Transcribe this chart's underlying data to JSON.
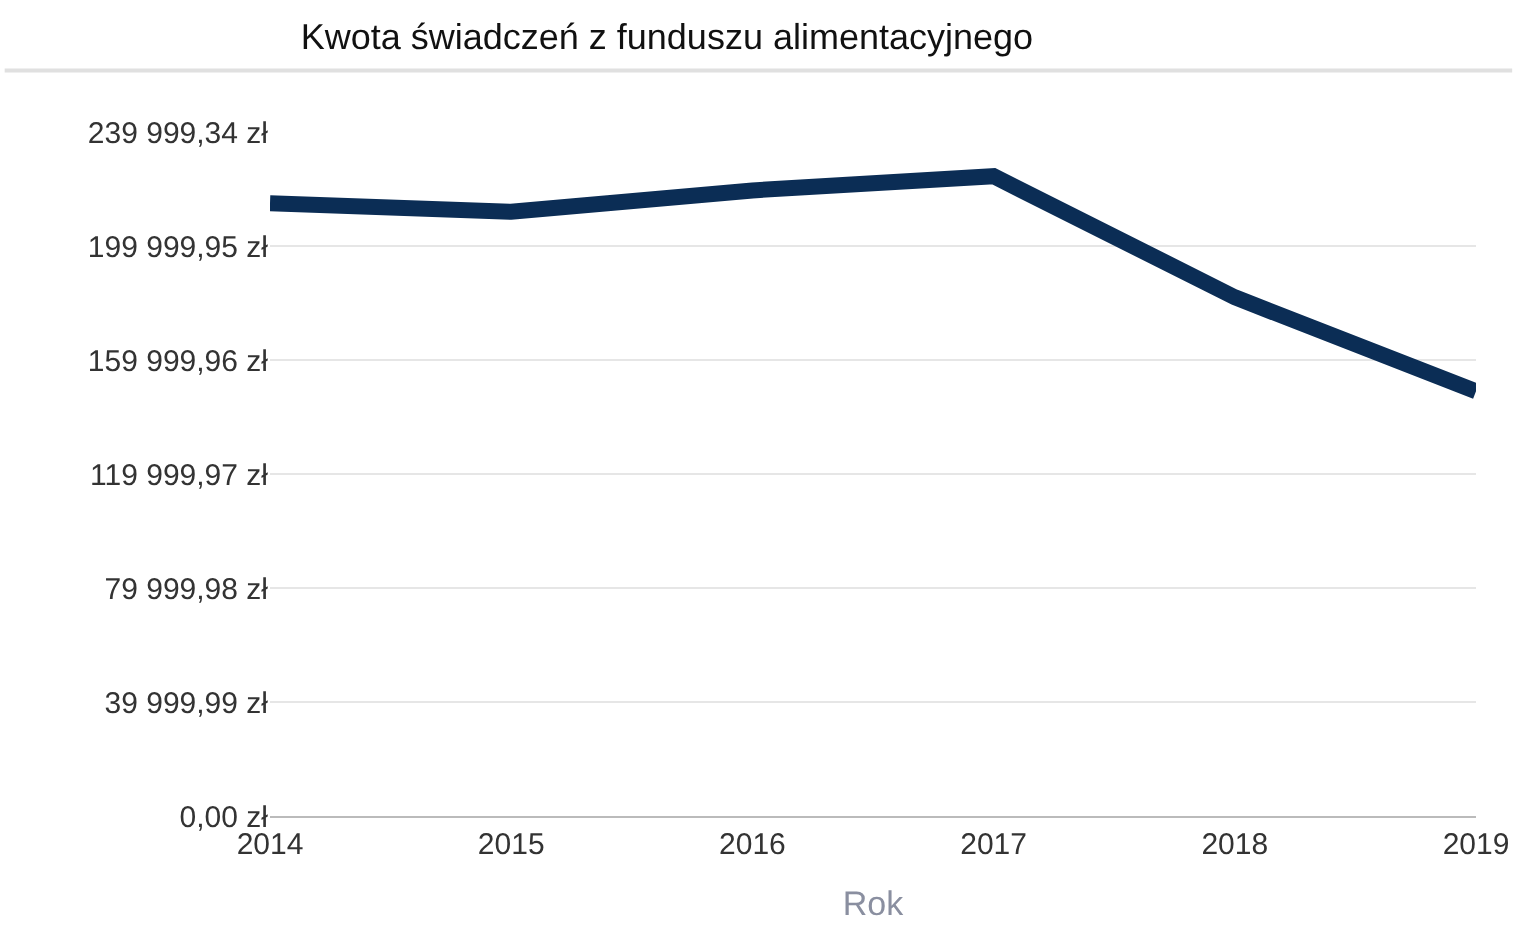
{
  "chart_data": {
    "type": "line",
    "title": "Kwota świadczeń z funduszu alimentacyjnego",
    "xlabel": "Rok",
    "x": [
      2014,
      2015,
      2016,
      2017,
      2018,
      2019
    ],
    "series": [
      {
        "color": "#0b2d55",
        "values": [
          215000,
          212000,
          219500,
          224500,
          182000,
          149000
        ]
      }
    ],
    "xlim": [
      2014,
      2019
    ],
    "xticks": [
      2014,
      2015,
      2016,
      2017,
      2018,
      2019
    ],
    "ylim": [
      0,
      239999.34
    ],
    "yticks": [
      {
        "value": 0,
        "label": "0,00 zł"
      },
      {
        "value": 39999.99,
        "label": "39 999,99 zł"
      },
      {
        "value": 79999.98,
        "label": "79 999,98 zł"
      },
      {
        "value": 119999.97,
        "label": "119 999,97 zł"
      },
      {
        "value": 159999.96,
        "label": "159 999,96 zł"
      },
      {
        "value": 199999.95,
        "label": "199 999,95 zł"
      },
      {
        "value": 239999.34,
        "label": "239 999,34 zł"
      }
    ],
    "grid": "y",
    "legend": false,
    "marker": "none",
    "line_style": "solid"
  }
}
